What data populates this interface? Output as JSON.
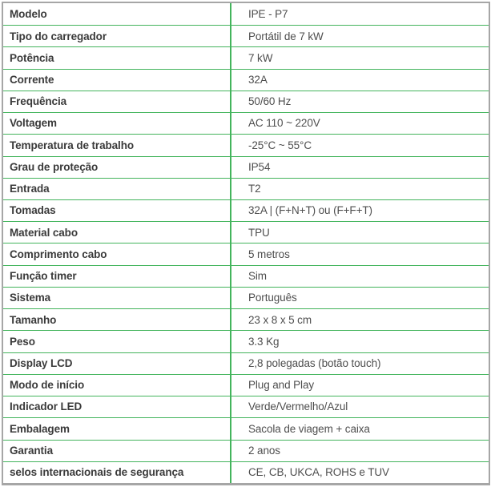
{
  "colors": {
    "green": "#43b45c",
    "border-gray": "#a6a6a6",
    "label-text": "#3a3a3a",
    "value-text": "#4e4e4e",
    "background": "#ffffff"
  },
  "table": {
    "rows": [
      {
        "label": "Modelo",
        "value": "IPE - P7"
      },
      {
        "label": "Tipo do carregador",
        "value": "Portátil de 7 kW"
      },
      {
        "label": "Potência",
        "value": "7 kW"
      },
      {
        "label": "Corrente",
        "value": "32A"
      },
      {
        "label": "Frequência",
        "value": "50/60 Hz"
      },
      {
        "label": "Voltagem",
        "value": "AC 110 ~ 220V"
      },
      {
        "label": "Temperatura de trabalho",
        "value": "-25°C ~ 55°C"
      },
      {
        "label": "Grau de proteção",
        "value": "IP54"
      },
      {
        "label": "Entrada",
        "value": "T2"
      },
      {
        "label": "Tomadas",
        "value": "32A | (F+N+T) ou (F+F+T)"
      },
      {
        "label": "Material cabo",
        "value": "TPU"
      },
      {
        "label": "Comprimento cabo",
        "value": "5 metros"
      },
      {
        "label": "Função timer",
        "value": "Sim"
      },
      {
        "label": "Sistema",
        "value": "Português"
      },
      {
        "label": "Tamanho",
        "value": "23 x 8 x 5 cm"
      },
      {
        "label": "Peso",
        "value": "3.3 Kg"
      },
      {
        "label": "Display LCD",
        "value": "2,8 polegadas (botão touch)"
      },
      {
        "label": "Modo de início",
        "value": "Plug and Play"
      },
      {
        "label": "Indicador LED",
        "value": "Verde/Vermelho/Azul"
      },
      {
        "label": "Embalagem",
        "value": "Sacola de viagem + caixa"
      },
      {
        "label": "Garantia",
        "value": "2 anos"
      },
      {
        "label": "selos internacionais de segurança",
        "value": "CE, CB, UKCA, ROHS e TUV"
      }
    ]
  }
}
